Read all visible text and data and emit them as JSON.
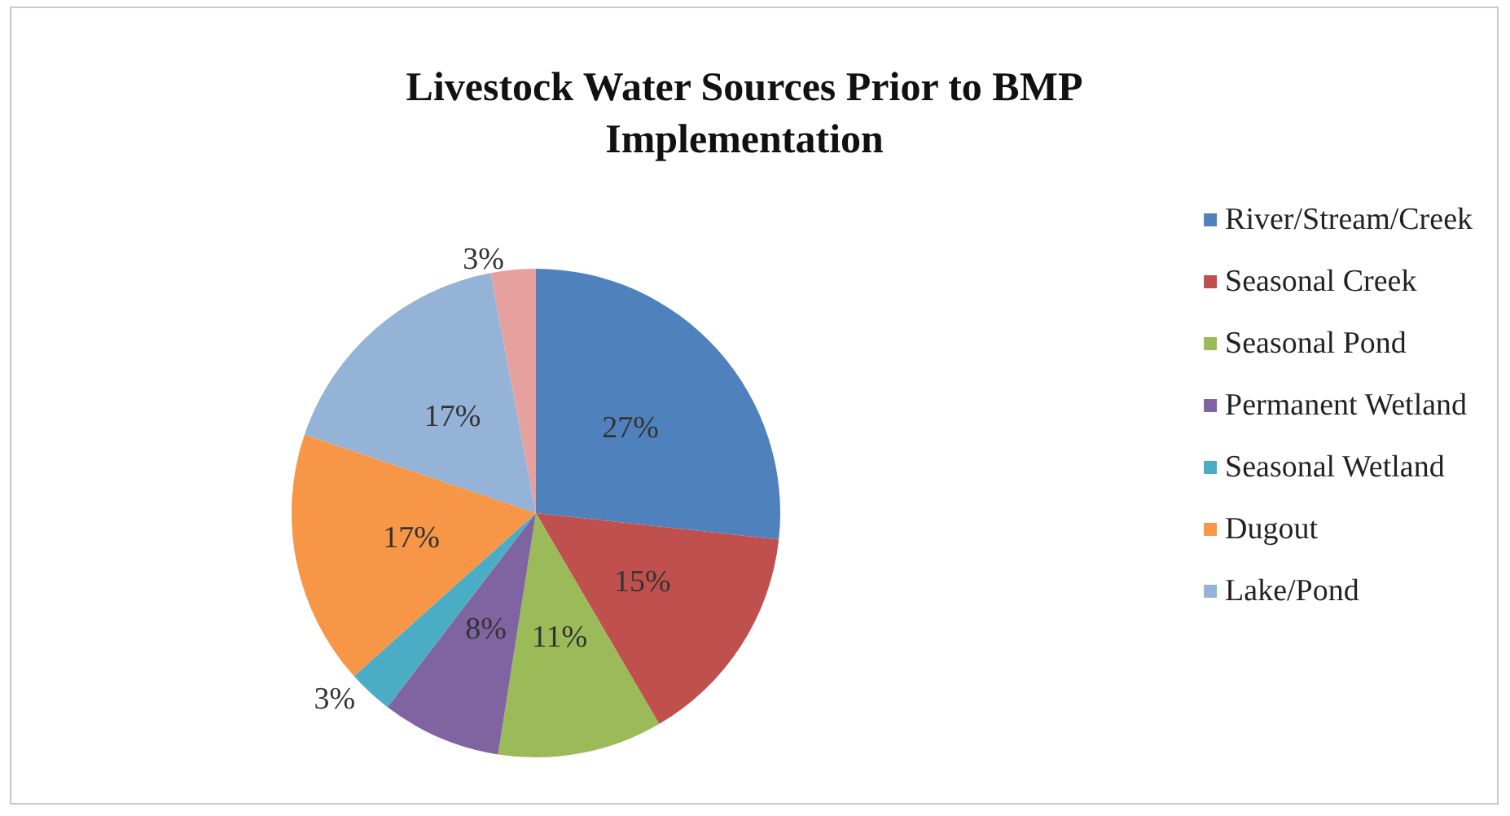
{
  "chart_data": {
    "type": "pie",
    "title": "Livestock Water Sources Prior to BMP\nImplementation",
    "categories": [
      "River/Stream/Creek",
      "Seasonal Creek",
      "Seasonal Pond",
      "Permanent Wetland",
      "Seasonal Wetland",
      "Dugout",
      "Lake/Pond",
      null
    ],
    "values": [
      27,
      15,
      11,
      8,
      3,
      17,
      17,
      3
    ],
    "value_labels": [
      "27%",
      "15%",
      "11%",
      "8%",
      "3%",
      "17%",
      "17%",
      "3%"
    ],
    "colors": [
      "#4f81bd",
      "#c0504d",
      "#9bbb59",
      "#8064a2",
      "#4bacc6",
      "#f79646",
      "#95b3d7",
      "#e6a19f"
    ],
    "legend": "right"
  }
}
